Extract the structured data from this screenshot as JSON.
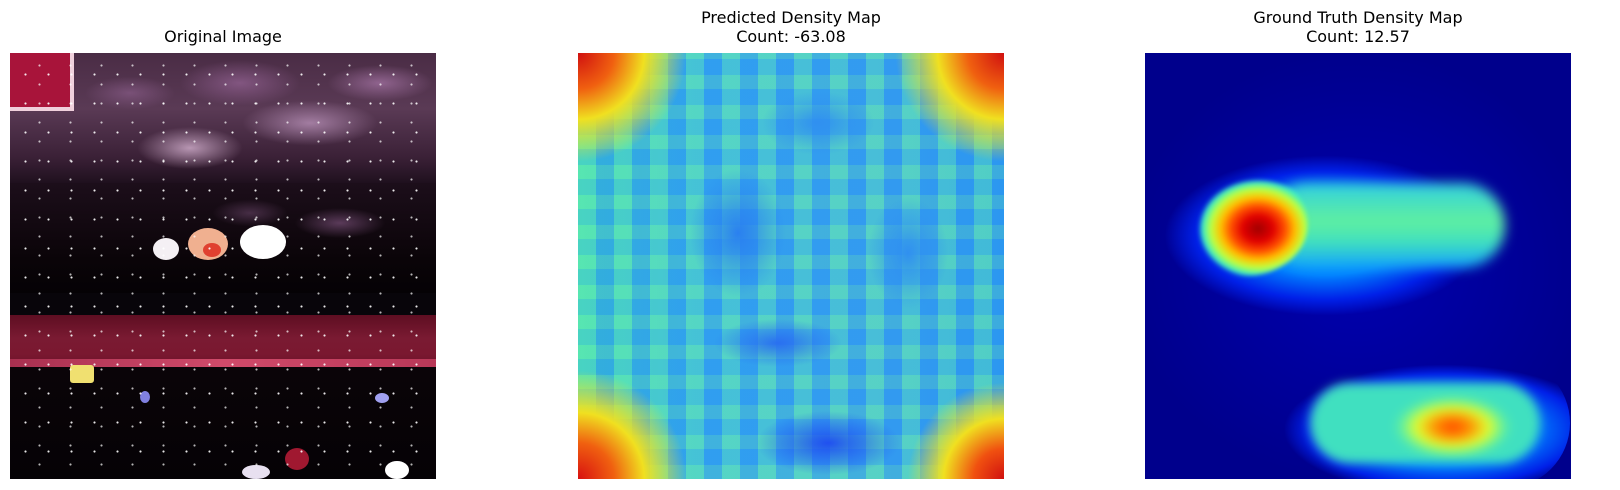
{
  "panels": {
    "original": {
      "title": "Original Image"
    },
    "predicted": {
      "title": "Predicted Density Map",
      "count": "Count: -63.08"
    },
    "ground_truth": {
      "title": "Ground Truth Density Map",
      "count": "Count: 12.57"
    }
  },
  "colors": {
    "background": "#ffffff",
    "title_text": "#000000",
    "density_low": "#00008c",
    "density_high": "#a00000"
  }
}
